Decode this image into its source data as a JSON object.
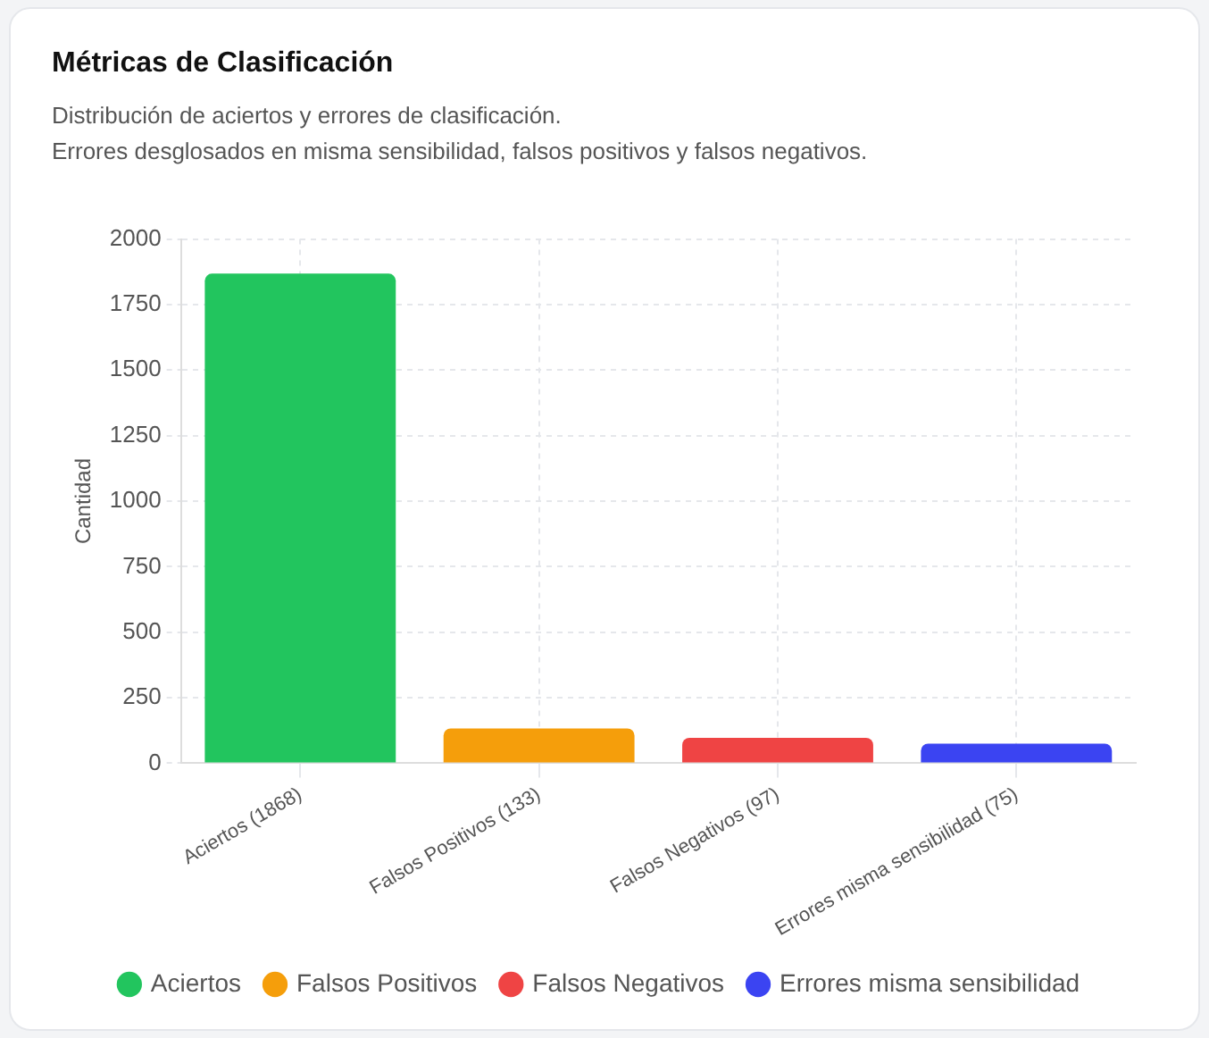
{
  "chart_data": {
    "type": "bar",
    "title": "Métricas de Clasificación",
    "subtitle": "Distribución de aciertos y errores de clasificación.\nErrores desglosados en misma sensibilidad, falsos positivos y falsos negativos.",
    "ylabel": "Cantidad",
    "categories": [
      "Aciertos (1868)",
      "Falsos Positivos (133)",
      "Falsos Negativos (97)",
      "Errores misma sensibilidad (75)"
    ],
    "series": [
      {
        "name": "Aciertos",
        "color": "#22c55e",
        "values": [
          1868,
          null,
          null,
          null
        ]
      },
      {
        "name": "Falsos Positivos",
        "color": "#f59e0b",
        "values": [
          null,
          133,
          null,
          null
        ]
      },
      {
        "name": "Falsos Negativos",
        "color": "#ef4444",
        "values": [
          null,
          null,
          97,
          null
        ]
      },
      {
        "name": "Errores misma sensibilidad",
        "color": "#3b44f2",
        "values": [
          null,
          null,
          null,
          75
        ]
      }
    ],
    "ylim": [
      0,
      2000
    ],
    "yticks": [
      0,
      250,
      500,
      750,
      1000,
      1250,
      1500,
      1750,
      2000
    ],
    "grid": true,
    "legend": "bottom"
  }
}
